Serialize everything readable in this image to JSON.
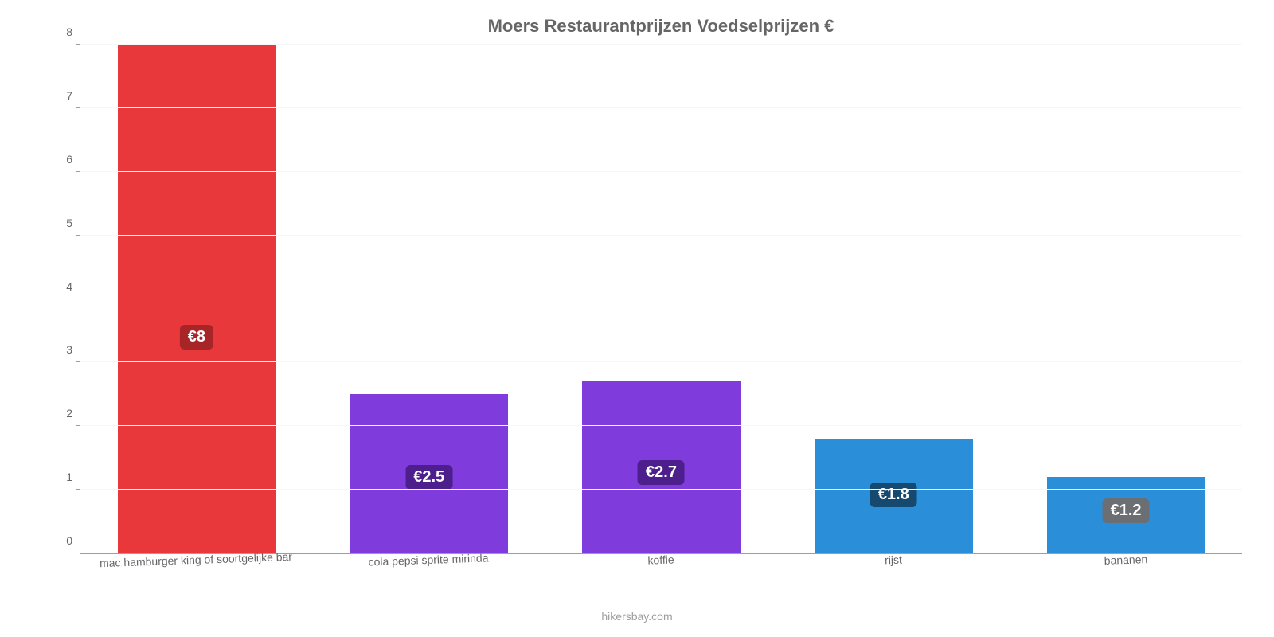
{
  "chart": {
    "type": "bar",
    "title": "Moers Restaurantprijzen Voedselprijzen €",
    "title_fontsize": 22,
    "title_color": "#666666",
    "background_color": "#ffffff",
    "grid_color": "#f7f7f7",
    "axis_color": "#9e9e9e",
    "tick_label_color": "#666666",
    "tick_label_fontsize": 14,
    "x_tick_label_fontsize": 14,
    "ylim": [
      0,
      8
    ],
    "ytick_step": 1,
    "bar_width": 0.68,
    "value_badge_fontsize": 20,
    "value_badge_text_color": "#ffffff",
    "categories": [
      "mac hamburger king of soortgelijke bar",
      "cola pepsi sprite mirinda",
      "koffie",
      "rijst",
      "bananen"
    ],
    "values": [
      8,
      2.5,
      2.7,
      1.8,
      1.2
    ],
    "value_labels": [
      "€8",
      "€2.5",
      "€2.7",
      "€1.8",
      "€1.2"
    ],
    "bar_colors": [
      "#e8383b",
      "#7f3bdb",
      "#7f3bdb",
      "#2a8ed8",
      "#2a8ed8"
    ],
    "badge_colors": [
      "#a82527",
      "#4c1f8c",
      "#4c1f8c",
      "#15496f",
      "#6b6e72"
    ],
    "y_ticks": [
      0,
      1,
      2,
      3,
      4,
      5,
      6,
      7,
      8
    ],
    "footer": "hikersbay.com",
    "footer_color": "#9e9e9e",
    "footer_fontsize": 14
  }
}
